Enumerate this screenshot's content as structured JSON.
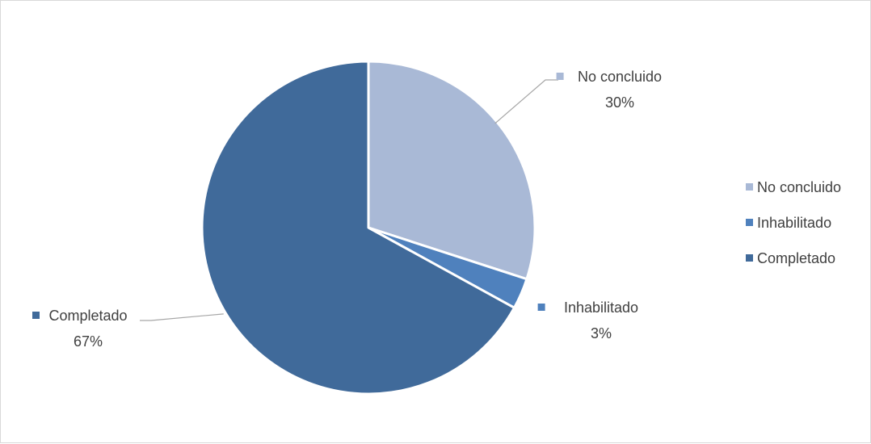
{
  "chart_data": {
    "type": "pie",
    "title": "",
    "legend_position": "right",
    "slices": [
      {
        "name": "No concluido",
        "value": 30,
        "label": "30%",
        "color": "#a9b9d6"
      },
      {
        "name": "Inhabilitado",
        "value": 3,
        "label": "3%",
        "color": "#4f81bd"
      },
      {
        "name": "Completado",
        "value": 67,
        "label": "67%",
        "color": "#406a9a"
      }
    ]
  }
}
